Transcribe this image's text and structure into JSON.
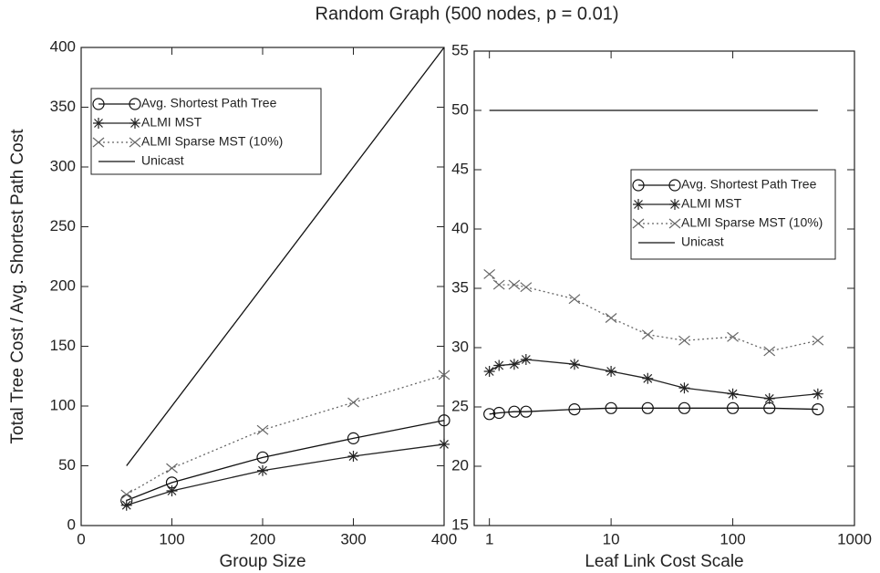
{
  "title": "Random Graph (500 nodes, p = 0.01)",
  "chart_data": [
    {
      "type": "line",
      "xlabel": "Group Size",
      "ylabel": "Total Tree Cost / Avg. Shortest Path Cost",
      "xlim": [
        0,
        400
      ],
      "xticks": [
        0,
        100,
        200,
        300,
        400
      ],
      "ylim": [
        0,
        400
      ],
      "yticks": [
        0,
        50,
        100,
        150,
        200,
        250,
        300,
        350,
        400
      ],
      "legend": "upper left",
      "series": [
        {
          "name": "Avg. Shortest Path Tree",
          "color": "#111111",
          "marker": "circle",
          "dash": "solid",
          "x": [
            50,
            100,
            200,
            300,
            400
          ],
          "values": [
            21,
            36,
            57,
            73,
            88
          ]
        },
        {
          "name": "ALMI MST",
          "color": "#222222",
          "marker": "star",
          "dash": "solid",
          "x": [
            50,
            100,
            200,
            300,
            400
          ],
          "values": [
            17,
            29,
            46,
            58,
            68
          ]
        },
        {
          "name": "ALMI Sparse MST (10%)",
          "color": "#666666",
          "marker": "chevron",
          "dash": "dotted",
          "x": [
            50,
            100,
            200,
            300,
            400
          ],
          "values": [
            26,
            48,
            80,
            103,
            126
          ]
        },
        {
          "name": "Unicast",
          "color": "#111111",
          "marker": "none",
          "dash": "solid",
          "x": [
            50,
            400
          ],
          "values": [
            50,
            400
          ]
        }
      ]
    },
    {
      "type": "line",
      "xlabel": "Leaf Link Cost Scale",
      "xscale": "log",
      "xlim": [
        0.75,
        1000
      ],
      "xticks": [
        1,
        10,
        100,
        1000
      ],
      "ylim": [
        15,
        55
      ],
      "yticks": [
        15,
        20,
        25,
        30,
        35,
        40,
        45,
        50,
        55
      ],
      "legend": "center right",
      "series": [
        {
          "name": "Avg. Shortest Path Tree",
          "color": "#111111",
          "marker": "circle",
          "dash": "solid",
          "x": [
            1,
            1.2,
            1.6,
            2,
            5,
            10,
            20,
            40,
            100,
            200,
            500
          ],
          "values": [
            24.4,
            24.5,
            24.6,
            24.6,
            24.8,
            24.9,
            24.9,
            24.9,
            24.9,
            24.9,
            24.8
          ]
        },
        {
          "name": "ALMI MST",
          "color": "#222222",
          "marker": "star",
          "dash": "solid",
          "x": [
            1,
            1.2,
            1.6,
            2,
            5,
            10,
            20,
            40,
            100,
            200,
            500
          ],
          "values": [
            28,
            28.5,
            28.6,
            29,
            28.6,
            28,
            27.4,
            26.6,
            26.1,
            25.7,
            26.1
          ]
        },
        {
          "name": "ALMI Sparse MST (10%)",
          "color": "#666666",
          "marker": "chevron",
          "dash": "dotted",
          "x": [
            1,
            1.2,
            1.6,
            2,
            5,
            10,
            20,
            40,
            100,
            200,
            500
          ],
          "values": [
            36.2,
            35.3,
            35.3,
            35.1,
            34.1,
            32.5,
            31.1,
            30.6,
            30.9,
            29.7,
            30.6
          ]
        },
        {
          "name": "Unicast",
          "color": "#111111",
          "marker": "none",
          "dash": "solid",
          "x": [
            1,
            500
          ],
          "values": [
            50,
            50
          ]
        }
      ]
    }
  ]
}
